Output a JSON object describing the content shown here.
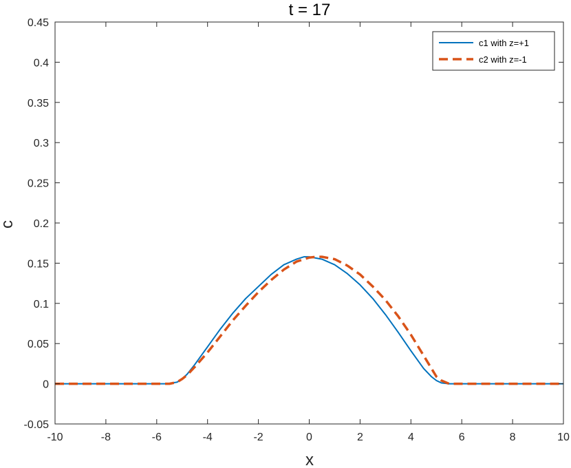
{
  "chart_data": {
    "type": "line",
    "title": "t = 17",
    "xlabel": "x",
    "ylabel": "c",
    "xlim": [
      -10,
      10
    ],
    "ylim": [
      -0.05,
      0.45
    ],
    "xticks": [
      -10,
      -8,
      -6,
      -4,
      -2,
      0,
      2,
      4,
      6,
      8,
      10
    ],
    "yticks": [
      -0.05,
      0,
      0.05,
      0.1,
      0.15,
      0.2,
      0.25,
      0.3,
      0.35,
      0.4,
      0.45
    ],
    "xtick_labels": [
      "-10",
      "-8",
      "-6",
      "-4",
      "-2",
      "0",
      "2",
      "4",
      "6",
      "8",
      "10"
    ],
    "ytick_labels": [
      "-0.05",
      "0",
      "0.05",
      "0.1",
      "0.15",
      "0.2",
      "0.25",
      "0.3",
      "0.35",
      "0.4",
      "0.45"
    ],
    "grid": false,
    "legend_position": "top-right",
    "series": [
      {
        "name": "c1 with z=+1",
        "color": "#0072BD",
        "style": "solid",
        "x": [
          -10,
          -8,
          -6,
          -5.6,
          -5.2,
          -5.0,
          -4.8,
          -4.5,
          -4.0,
          -3.5,
          -3.0,
          -2.5,
          -2.0,
          -1.5,
          -1.0,
          -0.5,
          -0.2,
          0.0,
          0.5,
          1.0,
          1.5,
          2.0,
          2.5,
          3.0,
          3.5,
          4.0,
          4.5,
          4.8,
          5.0,
          5.2,
          5.5,
          6.0,
          8.0,
          10.0
        ],
        "y": [
          0,
          0,
          0,
          0.0,
          0.002,
          0.006,
          0.012,
          0.024,
          0.046,
          0.068,
          0.088,
          0.106,
          0.121,
          0.136,
          0.148,
          0.155,
          0.158,
          0.158,
          0.155,
          0.148,
          0.137,
          0.123,
          0.106,
          0.086,
          0.064,
          0.041,
          0.019,
          0.009,
          0.004,
          0.001,
          0.0,
          0,
          0,
          0
        ]
      },
      {
        "name": "c2 with z=-1",
        "color": "#D95319",
        "style": "dashed",
        "x": [
          -10,
          -8,
          -6,
          -5.5,
          -5.2,
          -5.0,
          -4.8,
          -4.5,
          -4.0,
          -3.5,
          -3.0,
          -2.5,
          -2.0,
          -1.5,
          -1.0,
          -0.5,
          0.0,
          0.3,
          0.5,
          1.0,
          1.5,
          2.0,
          2.5,
          3.0,
          3.5,
          4.0,
          4.5,
          5.0,
          5.2,
          5.5,
          6.0,
          8.0,
          10.0
        ],
        "y": [
          0,
          0,
          0,
          0.0,
          0.002,
          0.006,
          0.011,
          0.021,
          0.039,
          0.059,
          0.079,
          0.097,
          0.114,
          0.129,
          0.142,
          0.152,
          0.157,
          0.158,
          0.158,
          0.155,
          0.147,
          0.136,
          0.121,
          0.104,
          0.084,
          0.061,
          0.035,
          0.009,
          0.004,
          0.0,
          0,
          0,
          0
        ]
      }
    ]
  }
}
